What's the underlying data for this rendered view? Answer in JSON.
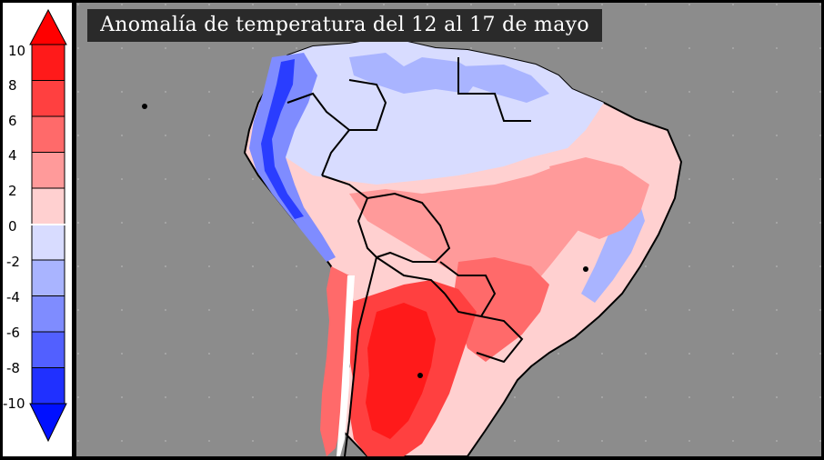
{
  "title": "Anomalía de temperatura del 12 al 17 de mayo",
  "colorbar": {
    "ticks": [
      "10",
      "8",
      "6",
      "4",
      "2",
      "0",
      "-2",
      "-4",
      "-6",
      "-8",
      "-10"
    ],
    "colors": [
      "#ff1a1a",
      "#ff4040",
      "#ff6a6a",
      "#ff9a9a",
      "#ffd0d0",
      "#d8dcff",
      "#a9b4ff",
      "#7f8cff",
      "#5260ff",
      "#2030ff"
    ],
    "top_arrow_color": "#ff0000",
    "bottom_arrow_color": "#0010ff"
  },
  "map": {
    "background": "#8c8c8c",
    "ocean_grid": "dotted"
  }
}
